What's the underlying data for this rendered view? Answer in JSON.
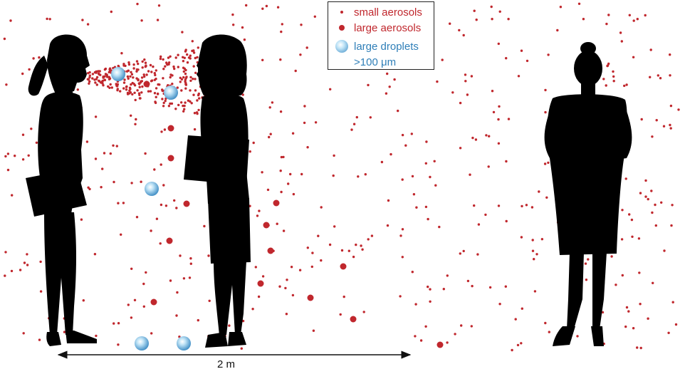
{
  "legend": {
    "small_aerosols_label": "small aerosols",
    "large_aerosols_label": "large aerosols",
    "large_droplets_label": "large droplets",
    "large_droplets_size_label": ">100 μm"
  },
  "distance_label": "2 m",
  "colors": {
    "aerosol": "#c0272d",
    "droplet": "#3d8cc4",
    "silhouette": "#000000"
  }
}
